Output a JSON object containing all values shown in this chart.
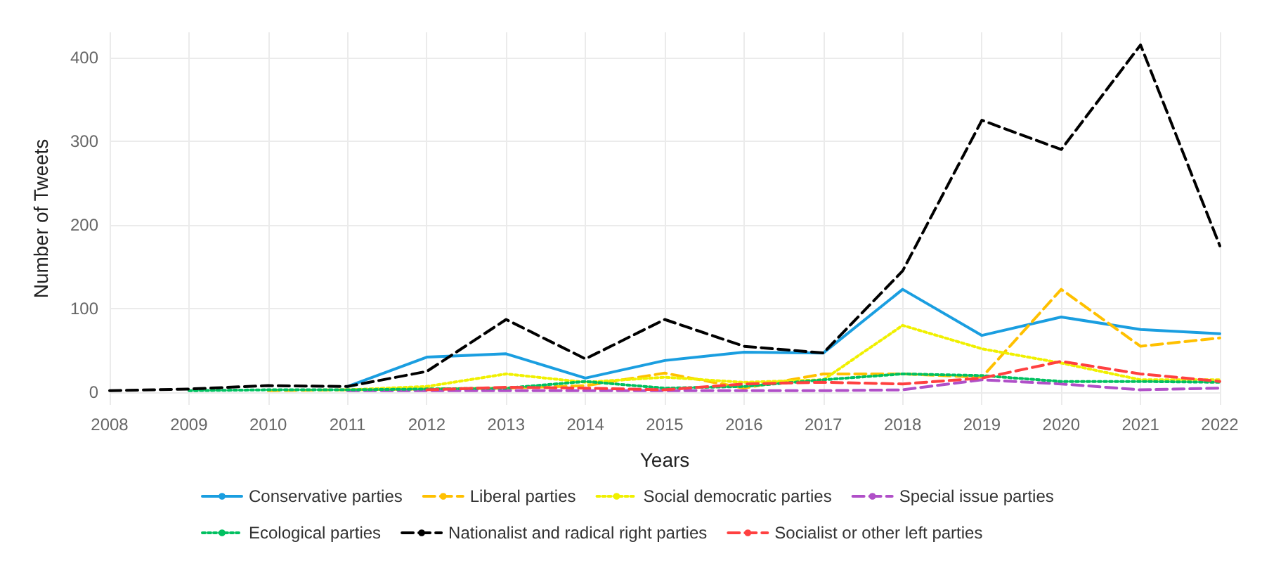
{
  "chart_data": {
    "type": "line",
    "xlabel": "Years",
    "ylabel": "Number of Tweets",
    "categories": [
      "2008",
      "2009",
      "2010",
      "2011",
      "2012",
      "2013",
      "2014",
      "2015",
      "2016",
      "2017",
      "2018",
      "2019",
      "2020",
      "2021",
      "2022"
    ],
    "series": [
      {
        "name": "Conservative parties",
        "color": "#1a9ee0",
        "line_style": "solid",
        "values": [
          null,
          null,
          null,
          7,
          42,
          46,
          17,
          38,
          48,
          47,
          123,
          68,
          90,
          75,
          70
        ]
      },
      {
        "name": "Liberal parties",
        "color": "#ffc000",
        "line_style": "dashed",
        "values": [
          null,
          null,
          2,
          3,
          4,
          5,
          8,
          23,
          5,
          22,
          22,
          18,
          123,
          55,
          65
        ]
      },
      {
        "name": "Social democratic parties",
        "color": "#f0f000",
        "line_style": "dotted",
        "values": [
          null,
          null,
          null,
          3,
          7,
          22,
          12,
          18,
          12,
          15,
          80,
          52,
          35,
          15,
          15
        ]
      },
      {
        "name": "Special issue parties",
        "color": "#b04fc8",
        "line_style": "dashed",
        "values": [
          null,
          null,
          null,
          2,
          2,
          2,
          2,
          2,
          2,
          2,
          3,
          15,
          10,
          3,
          5
        ]
      },
      {
        "name": "Ecological parties",
        "color": "#00c060",
        "line_style": "dotted",
        "values": [
          null,
          2,
          3,
          3,
          4,
          5,
          13,
          5,
          7,
          15,
          22,
          20,
          13,
          13,
          12
        ]
      },
      {
        "name": "Nationalist and radical right parties",
        "color": "#000000",
        "line_style": "dashed",
        "values": [
          2,
          4,
          8,
          7,
          25,
          87,
          40,
          87,
          55,
          47,
          145,
          325,
          290,
          415,
          175
        ]
      },
      {
        "name": "Socialist or other left parties",
        "color": "#ff4040",
        "line_style": "dashed",
        "values": [
          null,
          null,
          null,
          null,
          3,
          6,
          5,
          3,
          10,
          12,
          10,
          17,
          37,
          22,
          13
        ]
      }
    ],
    "ylim": [
      -15,
      430
    ],
    "yticks": [
      0,
      100,
      200,
      300,
      400
    ],
    "grid": true,
    "legend": "bottom",
    "marker": "none"
  }
}
